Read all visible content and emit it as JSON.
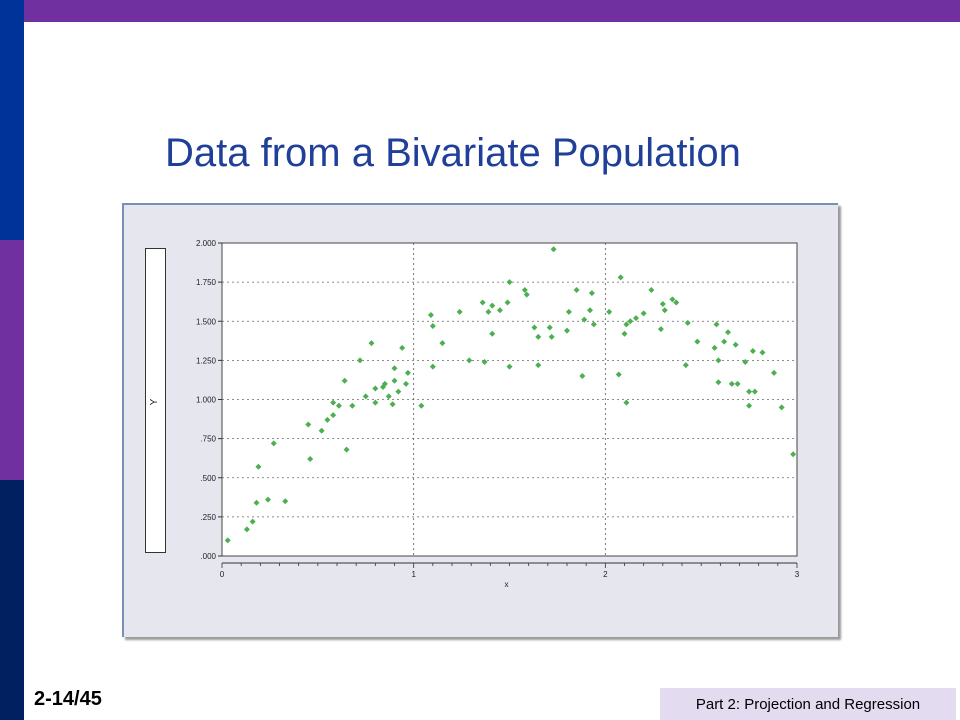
{
  "slide": {
    "title": "Data from a Bivariate Population",
    "page_number": "2-14/45",
    "footer": "Part 2: Projection and Regression"
  },
  "colors": {
    "accent_purple": "#7030a0",
    "accent_blue": "#003399",
    "title_blue": "#1f3f99",
    "point_green": "#4caf50"
  },
  "chart_data": {
    "type": "scatter",
    "xlabel": "x",
    "ylabel": "Y",
    "xlim": [
      0,
      3
    ],
    "ylim": [
      0,
      2
    ],
    "x_ticks": [
      0,
      1,
      2,
      3
    ],
    "x_tick_labels": [
      "0",
      "1",
      "2",
      "3"
    ],
    "y_ticks": [
      0,
      0.25,
      0.5,
      0.75,
      1.0,
      1.25,
      1.5,
      1.75,
      2.0
    ],
    "y_tick_labels": [
      ".000",
      ".250",
      ".500",
      ".750",
      "1.000",
      "1.250",
      "1.500",
      "1.750",
      "2.000"
    ],
    "grid": true,
    "grid_style": "dotted",
    "major_grid_x": [
      1,
      2
    ],
    "points": [
      [
        0.03,
        0.1
      ],
      [
        0.13,
        0.17
      ],
      [
        0.16,
        0.22
      ],
      [
        0.18,
        0.34
      ],
      [
        0.19,
        0.57
      ],
      [
        0.24,
        0.36
      ],
      [
        0.27,
        0.72
      ],
      [
        0.33,
        0.35
      ],
      [
        0.45,
        0.84
      ],
      [
        0.46,
        0.62
      ],
      [
        0.52,
        0.8
      ],
      [
        0.55,
        0.87
      ],
      [
        0.58,
        0.9
      ],
      [
        0.58,
        0.98
      ],
      [
        0.61,
        0.96
      ],
      [
        0.64,
        1.12
      ],
      [
        0.65,
        0.68
      ],
      [
        0.68,
        0.96
      ],
      [
        0.72,
        1.25
      ],
      [
        0.75,
        1.02
      ],
      [
        0.78,
        1.36
      ],
      [
        0.8,
        0.98
      ],
      [
        0.8,
        1.07
      ],
      [
        0.84,
        1.08
      ],
      [
        0.85,
        1.1
      ],
      [
        0.87,
        1.02
      ],
      [
        0.89,
        0.97
      ],
      [
        0.9,
        1.12
      ],
      [
        0.9,
        1.2
      ],
      [
        0.92,
        1.05
      ],
      [
        0.94,
        1.33
      ],
      [
        0.96,
        1.1
      ],
      [
        0.97,
        1.17
      ],
      [
        1.04,
        0.96
      ],
      [
        1.09,
        1.54
      ],
      [
        1.1,
        1.47
      ],
      [
        1.1,
        1.21
      ],
      [
        1.15,
        1.36
      ],
      [
        1.24,
        1.56
      ],
      [
        1.29,
        1.25
      ],
      [
        1.36,
        1.62
      ],
      [
        1.37,
        1.24
      ],
      [
        1.39,
        1.56
      ],
      [
        1.41,
        1.6
      ],
      [
        1.41,
        1.42
      ],
      [
        1.45,
        1.57
      ],
      [
        1.49,
        1.62
      ],
      [
        1.5,
        1.75
      ],
      [
        1.5,
        1.21
      ],
      [
        1.58,
        1.7
      ],
      [
        1.59,
        1.67
      ],
      [
        1.63,
        1.46
      ],
      [
        1.65,
        1.4
      ],
      [
        1.65,
        1.22
      ],
      [
        1.71,
        1.46
      ],
      [
        1.72,
        1.4
      ],
      [
        1.73,
        1.96
      ],
      [
        1.8,
        1.44
      ],
      [
        1.81,
        1.56
      ],
      [
        1.85,
        1.7
      ],
      [
        1.88,
        1.15
      ],
      [
        1.89,
        1.51
      ],
      [
        1.92,
        1.57
      ],
      [
        1.93,
        1.68
      ],
      [
        1.94,
        1.48
      ],
      [
        2.02,
        1.56
      ],
      [
        2.07,
        1.16
      ],
      [
        2.08,
        1.78
      ],
      [
        2.1,
        1.42
      ],
      [
        2.11,
        0.98
      ],
      [
        2.11,
        1.48
      ],
      [
        2.13,
        1.5
      ],
      [
        2.16,
        1.52
      ],
      [
        2.2,
        1.55
      ],
      [
        2.24,
        1.7
      ],
      [
        2.29,
        1.45
      ],
      [
        2.3,
        1.61
      ],
      [
        2.31,
        1.57
      ],
      [
        2.35,
        1.64
      ],
      [
        2.37,
        1.62
      ],
      [
        2.42,
        1.22
      ],
      [
        2.43,
        1.49
      ],
      [
        2.48,
        1.37
      ],
      [
        2.57,
        1.33
      ],
      [
        2.58,
        1.48
      ],
      [
        2.59,
        1.25
      ],
      [
        2.59,
        1.11
      ],
      [
        2.62,
        1.37
      ],
      [
        2.64,
        1.43
      ],
      [
        2.66,
        1.1
      ],
      [
        2.68,
        1.35
      ],
      [
        2.69,
        1.1
      ],
      [
        2.73,
        1.24
      ],
      [
        2.75,
        1.05
      ],
      [
        2.75,
        0.96
      ],
      [
        2.77,
        1.31
      ],
      [
        2.78,
        1.05
      ],
      [
        2.82,
        1.3
      ],
      [
        2.88,
        1.17
      ],
      [
        2.92,
        0.95
      ],
      [
        2.98,
        0.65
      ]
    ]
  }
}
